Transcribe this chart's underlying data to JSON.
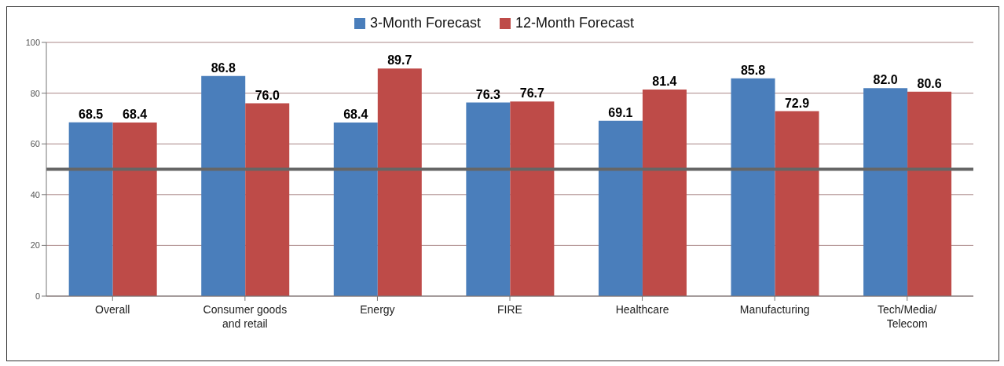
{
  "chart_data": {
    "type": "bar",
    "categories": [
      "Overall",
      "Consumer goods and retail",
      "Energy",
      "FIRE",
      "Healthcare",
      "Manufacturing",
      "Tech/Media/Telecom"
    ],
    "series": [
      {
        "name": "3-Month Forecast",
        "color": "#4a7ebb",
        "values": [
          68.5,
          86.8,
          68.4,
          76.3,
          69.1,
          85.8,
          82.0
        ],
        "value_labels": [
          "68.5",
          "86.8",
          "68.4",
          "76.3",
          "69.1",
          "85.8",
          "82.0"
        ]
      },
      {
        "name": "12-Month Forecast",
        "color": "#be4b48",
        "values": [
          68.4,
          76.0,
          89.7,
          76.7,
          81.4,
          72.9,
          80.6
        ],
        "value_labels": [
          "68.4",
          "76.0",
          "89.7",
          "76.7",
          "81.4",
          "72.9",
          "80.6"
        ]
      }
    ],
    "ylim": [
      0,
      100
    ],
    "yticks": [
      0,
      20,
      40,
      60,
      80,
      100
    ],
    "grid": "y",
    "legend": "top",
    "ref_lines": [
      {
        "axis": "y",
        "value": 50,
        "color": "#666666"
      }
    ]
  }
}
